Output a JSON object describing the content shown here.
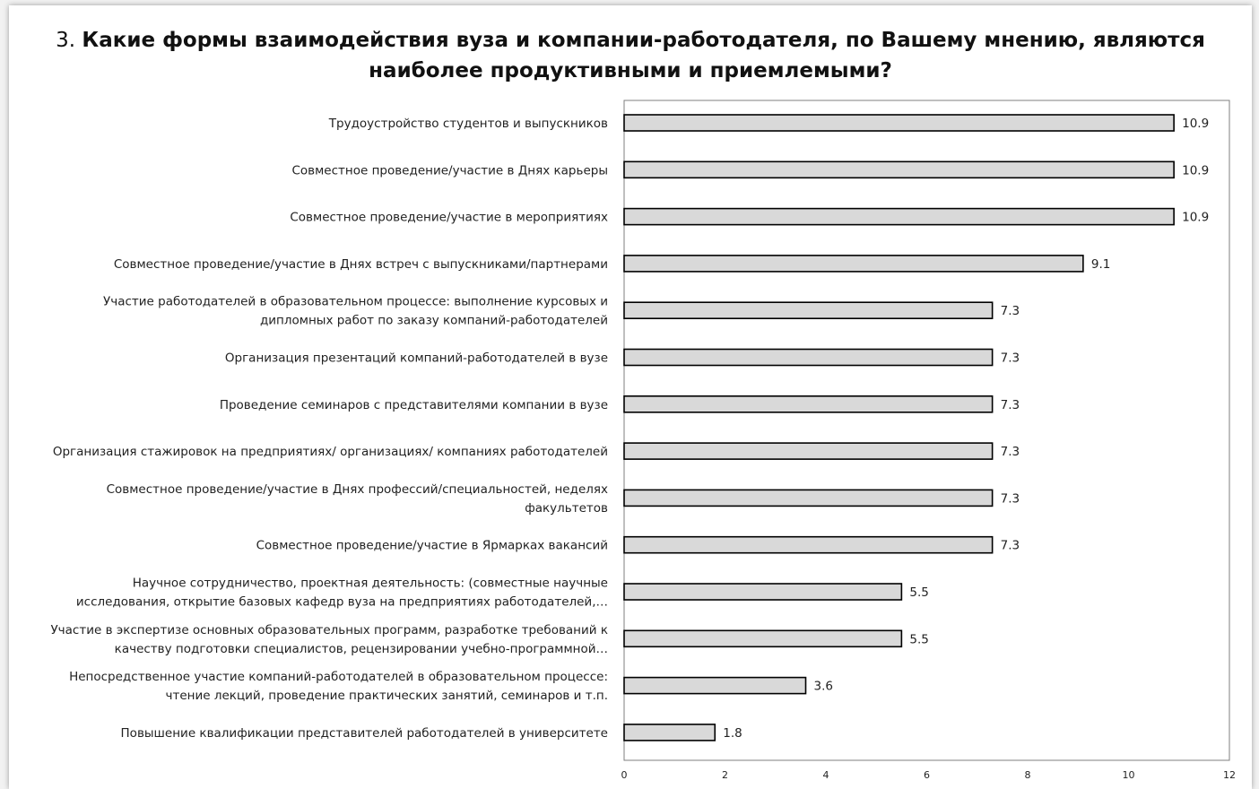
{
  "chart_data": {
    "type": "bar",
    "orientation": "horizontal",
    "title_number": "3.",
    "title": "Какие формы взаимодействия вуза и компании-работодателя, по Вашему мнению, являются наиболее продуктивными и приемлемыми?",
    "xlim": [
      0,
      12
    ],
    "x_ticks": [
      "0",
      "2",
      "4",
      "6",
      "8",
      "10",
      "12"
    ],
    "grid": false,
    "bar_color": "#d9d9d9",
    "bar_edge_color": "#000000",
    "categories": [
      [
        "Трудоустройство студентов и выпускников"
      ],
      [
        "Совместное проведение/участие в Днях карьеры"
      ],
      [
        "Совместное проведение/участие в мероприятиях"
      ],
      [
        "Совместное проведение/участие в Днях встреч с выпускниками/партнерами"
      ],
      [
        "Участие работодателей в образовательном процессе: выполнение курсовых и",
        "дипломных работ по заказу компаний-работодателей"
      ],
      [
        "Организация презентаций компаний-работодателей в вузе"
      ],
      [
        "Проведение семинаров с представителями компании в вузе"
      ],
      [
        "Организация стажировок на предприятиях/ организациях/ компаниях работодателей"
      ],
      [
        "Совместное проведение/участие в Днях профессий/специальностей, неделях",
        "факультетов"
      ],
      [
        "Совместное проведение/участие в Ярмарках вакансий"
      ],
      [
        "Научное сотрудничество, проектная деятельность: (совместные научные",
        "исследования, открытие базовых кафедр вуза на предприятиях работодателей,…"
      ],
      [
        "Участие в экспертизе основных образовательных программ, разработке требований к",
        "качеству подготовки специалистов, рецензировании учебно-программной…"
      ],
      [
        "Непосредственное участие компаний-работодателей в образовательном процессе:",
        "чтение лекций, проведение практических занятий, семинаров и т.п."
      ],
      [
        "Повышение квалификации представителей работодателей в университете"
      ]
    ],
    "values": [
      10.9,
      10.9,
      10.9,
      9.1,
      7.3,
      7.3,
      7.3,
      7.3,
      7.3,
      7.3,
      5.5,
      5.5,
      3.6,
      1.8
    ],
    "value_labels": [
      "10.9",
      "10.9",
      "10.9",
      "9.1",
      "7.3",
      "7.3",
      "7.3",
      "7.3",
      "7.3",
      "7.3",
      "5.5",
      "5.5",
      "3.6",
      "1.8"
    ]
  }
}
